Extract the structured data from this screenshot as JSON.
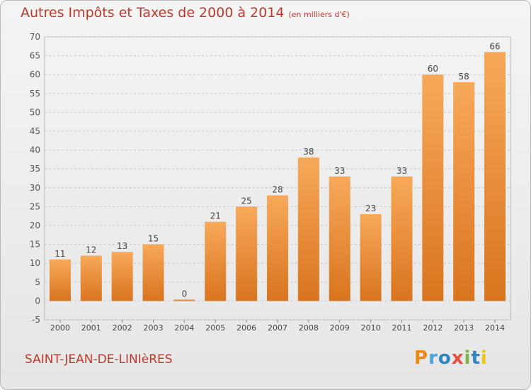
{
  "page": {
    "title": "Autres Impôts et Taxes de 2000 à 2014",
    "title_unit": "(en milliers d'€)",
    "commune": "SAINT-JEAN-DE-LINIèRES",
    "logo_text": "Proxiti",
    "colors": {
      "title": "#c0392b",
      "bar_light": "#f7a95a",
      "bar_dark": "#d9741e",
      "grid": "#c8c8c8"
    }
  },
  "chart_data": {
    "type": "bar",
    "categories": [
      "2000",
      "2001",
      "2002",
      "2003",
      "2004",
      "2005",
      "2006",
      "2007",
      "2008",
      "2009",
      "2010",
      "2011",
      "2012",
      "2013",
      "2014"
    ],
    "values": [
      11,
      12,
      13,
      15,
      0,
      21,
      25,
      28,
      38,
      33,
      23,
      33,
      60,
      58,
      66
    ],
    "ylim": [
      -5,
      70
    ],
    "yticks": [
      -5,
      0,
      5,
      10,
      15,
      20,
      25,
      30,
      35,
      40,
      45,
      50,
      55,
      60,
      65,
      70
    ],
    "grid": true,
    "data_labels": true
  }
}
